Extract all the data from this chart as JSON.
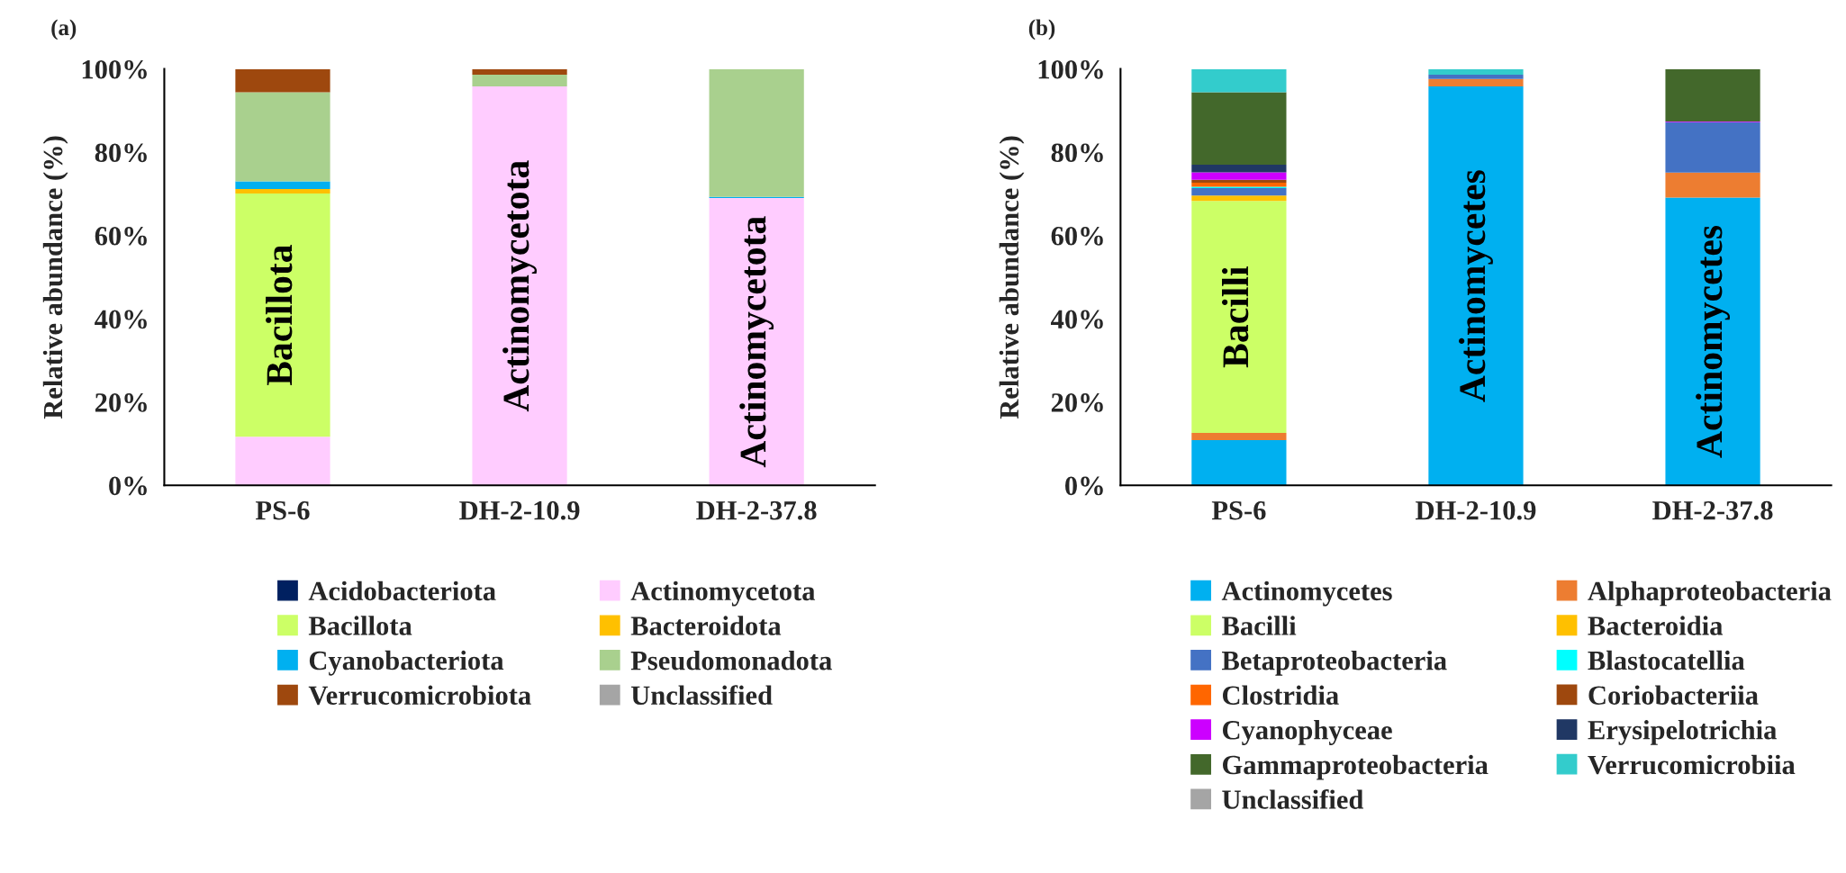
{
  "chart_data": [
    {
      "type": "bar",
      "title": "(a)",
      "ylabel": "Relative abundance (%)",
      "stacked": true,
      "categories": [
        "PS-6",
        "DH-2-10.9",
        "DH-2-37.8"
      ],
      "ylim": [
        0,
        100
      ],
      "yticks": [
        {
          "value": 0,
          "label": "0%"
        },
        {
          "value": 20,
          "label": "20%"
        },
        {
          "value": 40,
          "label": "40%"
        },
        {
          "value": 60,
          "label": "60%"
        },
        {
          "value": 80,
          "label": "80%"
        },
        {
          "value": 100,
          "label": "100%"
        }
      ],
      "grid": false,
      "legend": "bottom",
      "series": [
        {
          "name": "Acidobacteriota",
          "color": "#002060",
          "values": [
            0,
            0,
            0
          ]
        },
        {
          "name": "Actinomycetota",
          "color": "#ffccff",
          "values": [
            11.7,
            95.8,
            69.0
          ]
        },
        {
          "name": "Bacillota",
          "color": "#ccff66",
          "values": [
            58.4,
            0,
            0
          ]
        },
        {
          "name": "Bacteroidota",
          "color": "#ffc000",
          "values": [
            1.1,
            0,
            0
          ]
        },
        {
          "name": "Cyanobacteriota",
          "color": "#00b0f0",
          "values": [
            1.8,
            0,
            0.3
          ]
        },
        {
          "name": "Pseudomonadota",
          "color": "#a9d08e",
          "values": [
            21.4,
            2.8,
            30.7
          ]
        },
        {
          "name": "Verrucomicrobiota",
          "color": "#9e480e",
          "values": [
            5.6,
            1.4,
            0
          ]
        },
        {
          "name": "Unclassified",
          "color": "#a5a5a5",
          "values": [
            0,
            0,
            0
          ]
        }
      ],
      "annotations": [
        "Bacillota",
        "Actinomycetota",
        "Actinomycetota"
      ]
    },
    {
      "type": "bar",
      "title": "(b)",
      "ylabel": "Relative abundance (%)",
      "stacked": true,
      "categories": [
        "PS-6",
        "DH-2-10.9",
        "DH-2-37.8"
      ],
      "ylim": [
        0,
        100
      ],
      "yticks": [
        {
          "value": 0,
          "label": "0%"
        },
        {
          "value": 20,
          "label": "20%"
        },
        {
          "value": 40,
          "label": "40%"
        },
        {
          "value": 60,
          "label": "60%"
        },
        {
          "value": 80,
          "label": "80%"
        },
        {
          "value": 100,
          "label": "100%"
        }
      ],
      "grid": false,
      "legend": "bottom",
      "series": [
        {
          "name": "Actinomycetes",
          "color": "#00b0f0",
          "values": [
            10.9,
            95.8,
            69.1
          ]
        },
        {
          "name": "Alphaproteobacteria",
          "color": "#ed7d31",
          "values": [
            1.7,
            1.8,
            6.0
          ]
        },
        {
          "name": "Bacilli",
          "color": "#ccff66",
          "values": [
            55.7,
            0,
            0
          ]
        },
        {
          "name": "Bacteroidia",
          "color": "#ffc000",
          "values": [
            1.3,
            0,
            0
          ]
        },
        {
          "name": "Betaproteobacteria",
          "color": "#4472c4",
          "values": [
            1.8,
            1.0,
            12.1
          ]
        },
        {
          "name": "Blastocatellia",
          "color": "#00ffff",
          "values": [
            0.3,
            0,
            0
          ]
        },
        {
          "name": "Clostridia",
          "color": "#ff6600",
          "values": [
            1.0,
            0,
            0
          ]
        },
        {
          "name": "Coriobacteriia",
          "color": "#9e480e",
          "values": [
            0.7,
            0,
            0
          ]
        },
        {
          "name": "Cyanophyceae",
          "color": "#cc00ff",
          "values": [
            1.8,
            0,
            0.2
          ]
        },
        {
          "name": "Erysipelotrichia",
          "color": "#203864",
          "values": [
            1.8,
            0,
            0
          ]
        },
        {
          "name": "Gammaproteobacteria",
          "color": "#43682b",
          "values": [
            17.4,
            0,
            12.6
          ]
        },
        {
          "name": "Verrucomicrobiia",
          "color": "#33cccc",
          "values": [
            5.6,
            1.4,
            0
          ]
        },
        {
          "name": "Unclassified",
          "color": "#a5a5a5",
          "values": [
            0,
            0,
            0
          ]
        }
      ],
      "annotations": [
        "Bacilli",
        "Actinomycetes",
        "Actinomycetes"
      ]
    }
  ]
}
